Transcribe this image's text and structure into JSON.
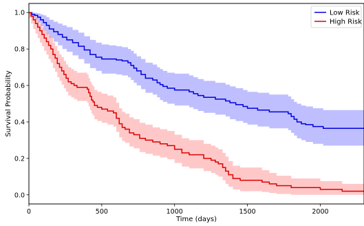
{
  "chart_data": {
    "type": "line",
    "title": "",
    "xlabel": "Time (days)",
    "ylabel": "Survival Probability",
    "xlim": [
      0,
      2300
    ],
    "ylim": [
      -0.05,
      1.05
    ],
    "xticks": [
      0,
      500,
      1000,
      1500,
      2000
    ],
    "yticks": [
      0.0,
      0.2,
      0.4,
      0.6,
      0.8,
      1.0
    ],
    "xtick_labels": [
      "0",
      "500",
      "1000",
      "1500",
      "2000"
    ],
    "ytick_labels": [
      "0.0",
      "0.2",
      "0.4",
      "0.6",
      "0.8",
      "1.0"
    ],
    "grid": false,
    "legend_position": "top-right",
    "series": [
      {
        "name": "Low Risk",
        "color": "#0000dd",
        "band_color": "#8a8aff",
        "step": true,
        "x": [
          0,
          20,
          40,
          60,
          80,
          100,
          120,
          140,
          170,
          200,
          230,
          260,
          300,
          340,
          380,
          420,
          460,
          500,
          550,
          600,
          640,
          680,
          700,
          720,
          740,
          770,
          800,
          850,
          880,
          900,
          920,
          950,
          1000,
          1050,
          1100,
          1130,
          1160,
          1200,
          1280,
          1350,
          1380,
          1420,
          1470,
          1500,
          1570,
          1650,
          1740,
          1780,
          1800,
          1820,
          1840,
          1870,
          1900,
          1950,
          2020,
          2300
        ],
        "y": [
          1.0,
          0.99,
          0.985,
          0.975,
          0.96,
          0.945,
          0.93,
          0.91,
          0.895,
          0.88,
          0.865,
          0.85,
          0.835,
          0.815,
          0.795,
          0.77,
          0.755,
          0.745,
          0.745,
          0.74,
          0.735,
          0.725,
          0.71,
          0.695,
          0.68,
          0.66,
          0.64,
          0.63,
          0.615,
          0.605,
          0.595,
          0.585,
          0.575,
          0.575,
          0.565,
          0.555,
          0.545,
          0.535,
          0.525,
          0.515,
          0.505,
          0.495,
          0.485,
          0.475,
          0.465,
          0.455,
          0.455,
          0.445,
          0.43,
          0.415,
          0.4,
          0.39,
          0.385,
          0.375,
          0.365,
          0.365
        ],
        "upper": [
          1.0,
          1.0,
          0.998,
          0.995,
          0.99,
          0.985,
          0.975,
          0.96,
          0.95,
          0.94,
          0.93,
          0.92,
          0.905,
          0.89,
          0.87,
          0.85,
          0.835,
          0.825,
          0.82,
          0.815,
          0.81,
          0.8,
          0.79,
          0.775,
          0.76,
          0.745,
          0.725,
          0.715,
          0.7,
          0.69,
          0.68,
          0.67,
          0.665,
          0.665,
          0.655,
          0.645,
          0.635,
          0.625,
          0.615,
          0.605,
          0.595,
          0.585,
          0.575,
          0.565,
          0.56,
          0.55,
          0.55,
          0.54,
          0.525,
          0.51,
          0.5,
          0.49,
          0.485,
          0.475,
          0.465,
          0.465
        ],
        "lower": [
          0.99,
          0.975,
          0.96,
          0.945,
          0.925,
          0.9,
          0.88,
          0.86,
          0.84,
          0.82,
          0.8,
          0.785,
          0.765,
          0.745,
          0.72,
          0.695,
          0.68,
          0.665,
          0.665,
          0.66,
          0.655,
          0.645,
          0.63,
          0.615,
          0.6,
          0.58,
          0.56,
          0.55,
          0.535,
          0.52,
          0.51,
          0.5,
          0.49,
          0.49,
          0.48,
          0.47,
          0.46,
          0.45,
          0.44,
          0.43,
          0.415,
          0.405,
          0.395,
          0.385,
          0.375,
          0.365,
          0.365,
          0.355,
          0.34,
          0.325,
          0.31,
          0.3,
          0.29,
          0.28,
          0.27,
          0.27
        ]
      },
      {
        "name": "High Risk",
        "color": "#dd0000",
        "band_color": "#ff9a9a",
        "step": true,
        "x": [
          0,
          15,
          30,
          45,
          60,
          75,
          90,
          105,
          120,
          135,
          150,
          165,
          180,
          195,
          210,
          225,
          240,
          255,
          270,
          290,
          310,
          330,
          350,
          400,
          410,
          420,
          430,
          440,
          450,
          470,
          500,
          540,
          580,
          600,
          620,
          640,
          660,
          690,
          720,
          760,
          800,
          850,
          900,
          950,
          1000,
          1050,
          1100,
          1200,
          1250,
          1280,
          1300,
          1330,
          1350,
          1370,
          1400,
          1450,
          1600,
          1650,
          1700,
          1800,
          2000,
          2150,
          2300
        ],
        "y": [
          1.0,
          0.98,
          0.96,
          0.94,
          0.92,
          0.9,
          0.88,
          0.86,
          0.84,
          0.82,
          0.8,
          0.77,
          0.75,
          0.72,
          0.7,
          0.68,
          0.66,
          0.64,
          0.62,
          0.61,
          0.6,
          0.59,
          0.59,
          0.58,
          0.56,
          0.54,
          0.52,
          0.51,
          0.49,
          0.48,
          0.47,
          0.46,
          0.45,
          0.42,
          0.39,
          0.37,
          0.36,
          0.34,
          0.33,
          0.31,
          0.3,
          0.29,
          0.28,
          0.27,
          0.25,
          0.23,
          0.22,
          0.2,
          0.19,
          0.18,
          0.17,
          0.15,
          0.13,
          0.11,
          0.09,
          0.08,
          0.07,
          0.06,
          0.05,
          0.04,
          0.03,
          0.02,
          0.02
        ],
        "upper": [
          1.0,
          0.995,
          0.985,
          0.97,
          0.955,
          0.94,
          0.92,
          0.905,
          0.89,
          0.875,
          0.86,
          0.835,
          0.815,
          0.79,
          0.77,
          0.755,
          0.735,
          0.715,
          0.7,
          0.69,
          0.68,
          0.67,
          0.67,
          0.66,
          0.64,
          0.62,
          0.605,
          0.595,
          0.575,
          0.565,
          0.555,
          0.545,
          0.535,
          0.505,
          0.475,
          0.455,
          0.445,
          0.425,
          0.415,
          0.395,
          0.385,
          0.37,
          0.36,
          0.35,
          0.33,
          0.31,
          0.3,
          0.28,
          0.27,
          0.26,
          0.25,
          0.23,
          0.21,
          0.185,
          0.16,
          0.15,
          0.135,
          0.12,
          0.105,
          0.09,
          0.075,
          0.06,
          0.06
        ],
        "lower": [
          0.97,
          0.94,
          0.91,
          0.885,
          0.86,
          0.835,
          0.815,
          0.79,
          0.77,
          0.745,
          0.725,
          0.695,
          0.675,
          0.645,
          0.625,
          0.605,
          0.585,
          0.565,
          0.545,
          0.535,
          0.525,
          0.515,
          0.515,
          0.505,
          0.485,
          0.465,
          0.445,
          0.435,
          0.415,
          0.405,
          0.395,
          0.385,
          0.375,
          0.345,
          0.315,
          0.295,
          0.285,
          0.265,
          0.255,
          0.235,
          0.225,
          0.215,
          0.205,
          0.195,
          0.175,
          0.155,
          0.145,
          0.13,
          0.12,
          0.11,
          0.1,
          0.08,
          0.06,
          0.045,
          0.03,
          0.02,
          0.015,
          0.01,
          0.005,
          0.0,
          0.0,
          0.0,
          0.0
        ]
      }
    ]
  }
}
